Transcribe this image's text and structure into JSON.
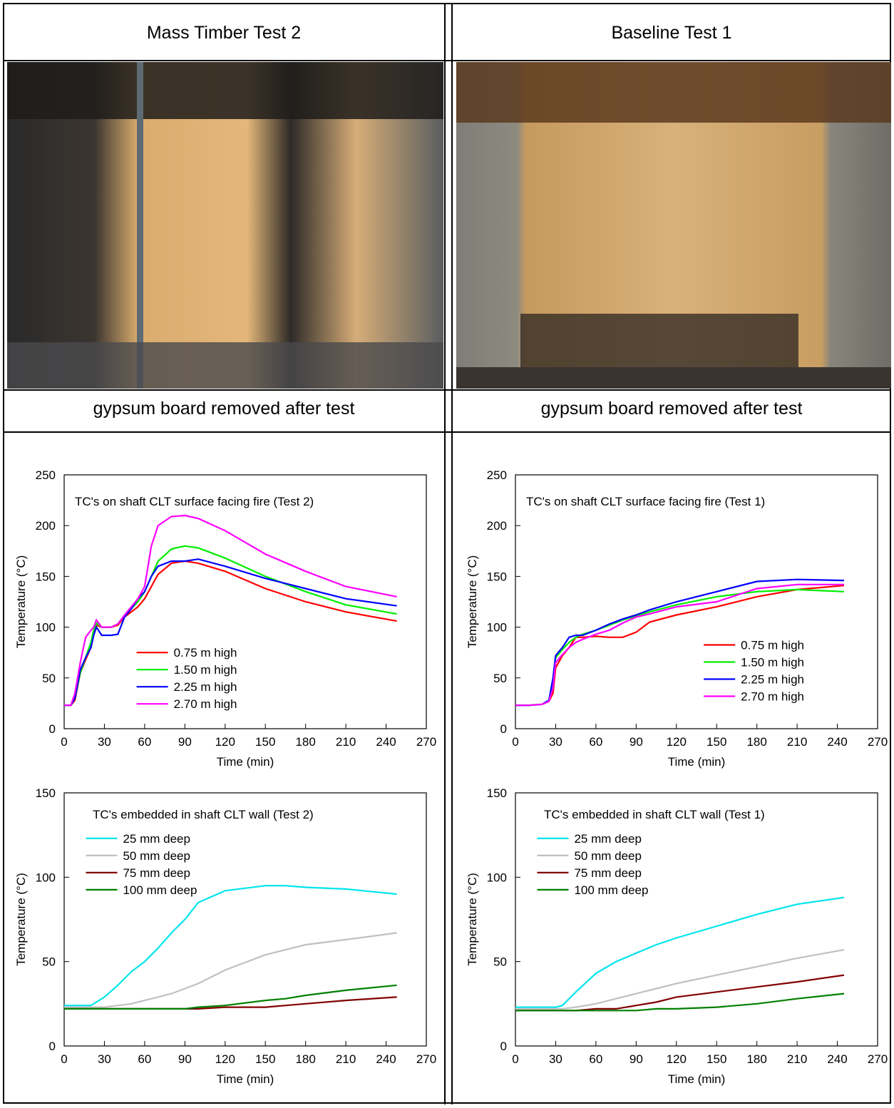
{
  "columns": [
    "Mass Timber Test 2",
    "Baseline Test 1"
  ],
  "captions": [
    "gypsum board removed after test",
    "gypsum board removed after test"
  ],
  "chart_data": [
    {
      "type": "line",
      "title": "TC's on shaft CLT surface facing fire (Test 2)",
      "xlabel": "Time (min)",
      "ylabel": "Temperature (°C)",
      "x": [
        0,
        5,
        8,
        12,
        16,
        20,
        22,
        24,
        28,
        35,
        40,
        45,
        50,
        55,
        60,
        65,
        70,
        80,
        90,
        100,
        120,
        150,
        180,
        210,
        248
      ],
      "series": [
        {
          "name": "0.75 m high",
          "color": "#ff0000",
          "values": [
            23,
            23,
            28,
            55,
            68,
            80,
            95,
            102,
            100,
            100,
            102,
            110,
            115,
            120,
            128,
            140,
            152,
            163,
            165,
            163,
            155,
            138,
            125,
            115,
            106
          ]
        },
        {
          "name": "1.50 m high",
          "color": "#00ee00",
          "values": [
            23,
            23,
            30,
            55,
            70,
            85,
            97,
            104,
            100,
            100,
            103,
            112,
            118,
            125,
            135,
            150,
            165,
            177,
            180,
            178,
            168,
            150,
            135,
            122,
            113
          ]
        },
        {
          "name": "2.25 m high",
          "color": "#0000ff",
          "values": [
            23,
            23,
            30,
            58,
            70,
            80,
            92,
            100,
            92,
            92,
            93,
            110,
            118,
            128,
            135,
            150,
            160,
            165,
            165,
            167,
            160,
            148,
            138,
            128,
            121
          ]
        },
        {
          "name": "2.70 m high",
          "color": "#ff00ff",
          "values": [
            23,
            23,
            35,
            65,
            90,
            97,
            100,
            107,
            100,
            100,
            103,
            112,
            120,
            128,
            140,
            180,
            200,
            209,
            210,
            207,
            195,
            172,
            155,
            140,
            130
          ]
        }
      ],
      "xlim": [
        0,
        270
      ],
      "xticks": [
        0,
        30,
        60,
        90,
        120,
        150,
        180,
        210,
        240,
        270
      ],
      "ylim": [
        0,
        250
      ],
      "yticks": [
        0,
        50,
        100,
        150,
        200,
        250
      ],
      "legend": "center left"
    },
    {
      "type": "line",
      "title": "TC's on shaft CLT surface facing fire (Test 1)",
      "xlabel": "Time (min)",
      "ylabel": "Temperature (°C)",
      "x": [
        0,
        10,
        20,
        25,
        28,
        30,
        35,
        40,
        45,
        50,
        60,
        70,
        80,
        90,
        100,
        120,
        150,
        180,
        210,
        245
      ],
      "series": [
        {
          "name": "0.75 m high",
          "color": "#ff0000",
          "values": [
            23,
            23,
            24,
            27,
            35,
            60,
            72,
            80,
            90,
            90,
            91,
            90,
            90,
            95,
            105,
            112,
            120,
            130,
            137,
            141
          ]
        },
        {
          "name": "1.50 m high",
          "color": "#00ee00",
          "values": [
            23,
            23,
            24,
            28,
            45,
            70,
            78,
            85,
            90,
            93,
            97,
            102,
            107,
            111,
            115,
            122,
            130,
            135,
            137,
            135
          ]
        },
        {
          "name": "2.25 m high",
          "color": "#0000ff",
          "values": [
            23,
            23,
            24,
            28,
            50,
            72,
            80,
            90,
            92,
            92,
            97,
            103,
            108,
            112,
            117,
            125,
            135,
            145,
            147,
            146
          ]
        },
        {
          "name": "2.70 m high",
          "color": "#ff00ff",
          "values": [
            23,
            23,
            24,
            27,
            40,
            65,
            73,
            80,
            85,
            88,
            93,
            97,
            104,
            110,
            113,
            120,
            125,
            138,
            142,
            142
          ]
        }
      ],
      "xlim": [
        0,
        270
      ],
      "xticks": [
        0,
        30,
        60,
        90,
        120,
        150,
        180,
        210,
        240,
        270
      ],
      "ylim": [
        0,
        250
      ],
      "yticks": [
        0,
        50,
        100,
        150,
        200,
        250
      ],
      "legend": "center right"
    },
    {
      "type": "line",
      "title": "TC's embedded in shaft CLT wall (Test 2)",
      "xlabel": "Time (min)",
      "ylabel": "Temperature (°C)",
      "x": [
        0,
        20,
        30,
        40,
        50,
        60,
        70,
        80,
        90,
        100,
        120,
        150,
        165,
        180,
        210,
        248
      ],
      "series": [
        {
          "name": "25 mm deep",
          "color": "#00e5ee",
          "values": [
            24,
            24,
            29,
            36,
            44,
            50,
            58,
            67,
            75,
            85,
            92,
            95,
            95,
            94,
            93,
            90
          ]
        },
        {
          "name": "50 mm deep",
          "color": "#c0c0c0",
          "values": [
            23,
            23,
            23,
            24,
            25,
            27,
            29,
            31,
            34,
            37,
            45,
            54,
            57,
            60,
            63,
            67
          ]
        },
        {
          "name": "75 mm deep",
          "color": "#800000",
          "values": [
            22,
            22,
            22,
            22,
            22,
            22,
            22,
            22,
            22,
            22,
            23,
            23,
            24,
            25,
            27,
            29
          ]
        },
        {
          "name": "100 mm deep",
          "color": "#008000",
          "values": [
            22,
            22,
            22,
            22,
            22,
            22,
            22,
            22,
            22,
            23,
            24,
            27,
            28,
            30,
            33,
            36
          ]
        }
      ],
      "xlim": [
        0,
        270
      ],
      "xticks": [
        0,
        30,
        60,
        90,
        120,
        150,
        180,
        210,
        240,
        270
      ],
      "ylim": [
        0,
        150
      ],
      "yticks": [
        0,
        50,
        100,
        150
      ],
      "legend": "upper left"
    },
    {
      "type": "line",
      "title": "TC's embedded in shaft CLT wall (Test 1)",
      "xlabel": "Time (min)",
      "ylabel": "Temperature (°C)",
      "x": [
        0,
        30,
        35,
        45,
        60,
        75,
        90,
        105,
        120,
        150,
        180,
        210,
        245
      ],
      "series": [
        {
          "name": "25 mm deep",
          "color": "#00e5ee",
          "values": [
            23,
            23,
            24,
            32,
            43,
            50,
            55,
            60,
            64,
            71,
            78,
            84,
            88
          ]
        },
        {
          "name": "50 mm deep",
          "color": "#c0c0c0",
          "values": [
            22,
            22,
            22,
            23,
            25,
            28,
            31,
            34,
            37,
            42,
            47,
            52,
            57
          ]
        },
        {
          "name": "75 mm deep",
          "color": "#800000",
          "values": [
            21,
            21,
            21,
            21,
            22,
            22,
            24,
            26,
            29,
            32,
            35,
            38,
            42
          ]
        },
        {
          "name": "100 mm deep",
          "color": "#008000",
          "values": [
            21,
            21,
            21,
            21,
            21,
            21,
            21,
            22,
            22,
            23,
            25,
            28,
            31
          ]
        }
      ],
      "xlim": [
        0,
        270
      ],
      "xticks": [
        0,
        30,
        60,
        90,
        120,
        150,
        180,
        210,
        240,
        270
      ],
      "ylim": [
        0,
        150
      ],
      "yticks": [
        0,
        50,
        100,
        150
      ],
      "legend": "upper left"
    }
  ]
}
